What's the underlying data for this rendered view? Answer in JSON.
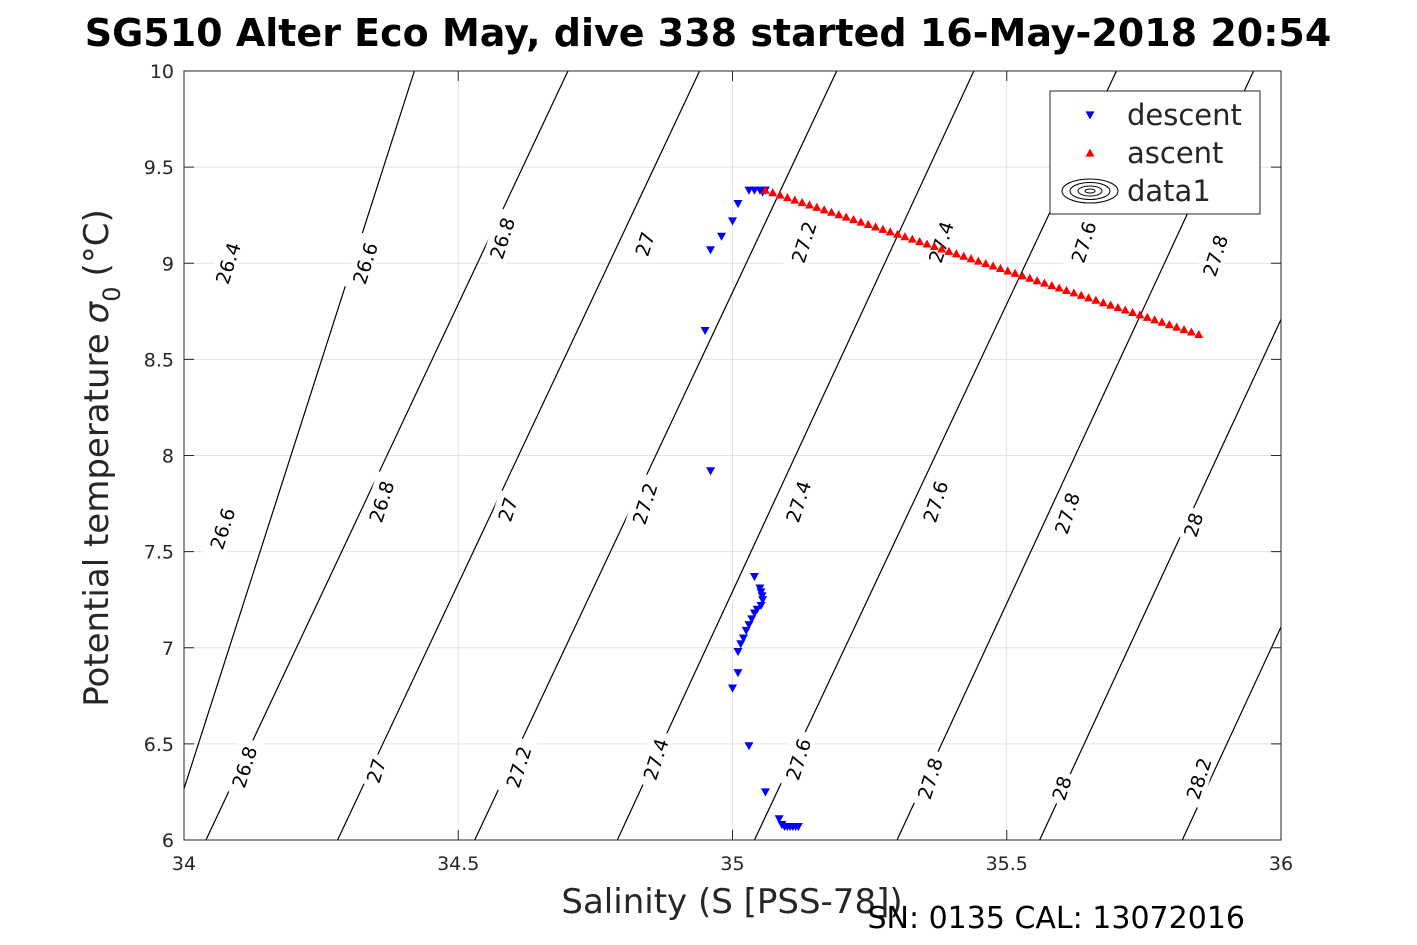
{
  "chart_data": {
    "type": "scatter",
    "title": "SG510 Alter Eco May, dive 338 started 16-May-2018 20:54",
    "xlabel": "Salinity (S [PSS-78])",
    "ylabel_main": "Potential temperature",
    "ylabel_sym": "σ",
    "ylabel_sub": "0",
    "ylabel_unit": "(°C)",
    "footer": "SN: 0135  CAL: 13072016",
    "xlim": [
      34,
      36
    ],
    "ylim": [
      6,
      10
    ],
    "xticks": [
      "34",
      "34.5",
      "35",
      "35.5",
      "36"
    ],
    "yticks": [
      "6",
      "6.5",
      "7",
      "7.5",
      "8",
      "8.5",
      "9",
      "9.5",
      "10"
    ],
    "grid": true,
    "legend_position": "top-right",
    "legend": [
      {
        "label": "descent",
        "marker": "triangle-down",
        "color": "#0000ff"
      },
      {
        "label": "ascent",
        "marker": "triangle-up",
        "color": "#ff0000"
      },
      {
        "label": "data1",
        "marker": "contour",
        "color": "#000000"
      }
    ],
    "contours": [
      {
        "level": "26.4",
        "x0": 33.97,
        "x1": 34.42
      },
      {
        "level": "26.6",
        "x0": 34.04,
        "x1": 34.7
      },
      {
        "level": "26.8",
        "x0": 34.28,
        "x1": 34.94
      },
      {
        "level": "27",
        "x0": 34.53,
        "x1": 35.19
      },
      {
        "level": "27.2",
        "x0": 34.79,
        "x1": 35.44
      },
      {
        "level": "27.4",
        "x0": 35.04,
        "x1": 35.7
      },
      {
        "level": "27.6",
        "x0": 35.3,
        "x1": 35.95
      },
      {
        "level": "27.8",
        "x0": 35.56,
        "x1": 36.21
      },
      {
        "level": "28",
        "x0": 35.82,
        "x1": 36.47
      },
      {
        "level": "28.2",
        "x0": 36.08,
        "x1": 36.73
      }
    ],
    "contour_labels": [
      {
        "text": "26.4",
        "x": 34.08,
        "y": 9.0
      },
      {
        "text": "26.6",
        "x": 34.33,
        "y": 9.0
      },
      {
        "text": "26.8",
        "x": 34.58,
        "y": 9.13
      },
      {
        "text": "27",
        "x": 34.84,
        "y": 9.1
      },
      {
        "text": "27.2",
        "x": 35.13,
        "y": 9.11
      },
      {
        "text": "27.4",
        "x": 35.38,
        "y": 9.11
      },
      {
        "text": "27.6",
        "x": 35.64,
        "y": 9.11
      },
      {
        "text": "27.8",
        "x": 35.88,
        "y": 9.04
      },
      {
        "text": "26.6",
        "x": 34.07,
        "y": 7.62
      },
      {
        "text": "26.8",
        "x": 34.36,
        "y": 7.76
      },
      {
        "text": "27",
        "x": 34.59,
        "y": 7.72
      },
      {
        "text": "27.2",
        "x": 34.84,
        "y": 7.75
      },
      {
        "text": "27.4",
        "x": 35.12,
        "y": 7.76
      },
      {
        "text": "27.6",
        "x": 35.37,
        "y": 7.76
      },
      {
        "text": "27.8",
        "x": 35.61,
        "y": 7.7
      },
      {
        "text": "28",
        "x": 35.84,
        "y": 7.64
      },
      {
        "text": "26.8",
        "x": 34.11,
        "y": 6.38
      },
      {
        "text": "27",
        "x": 34.35,
        "y": 6.36
      },
      {
        "text": "27.2",
        "x": 34.61,
        "y": 6.38
      },
      {
        "text": "27.4",
        "x": 34.86,
        "y": 6.42
      },
      {
        "text": "27.6",
        "x": 35.12,
        "y": 6.42
      },
      {
        "text": "27.8",
        "x": 35.36,
        "y": 6.32
      },
      {
        "text": "28",
        "x": 35.6,
        "y": 6.27
      },
      {
        "text": "28.2",
        "x": 35.85,
        "y": 6.32
      }
    ],
    "series": [
      {
        "name": "descent",
        "marker": "triangle-down",
        "color": "#0000ff",
        "points": [
          [
            35.03,
            9.38
          ],
          [
            35.04,
            9.38
          ],
          [
            35.05,
            9.38
          ],
          [
            35.06,
            9.38
          ],
          [
            35.055,
            9.37
          ],
          [
            35.01,
            9.31
          ],
          [
            35.0,
            9.22
          ],
          [
            34.98,
            9.14
          ],
          [
            34.96,
            9.07
          ],
          [
            34.95,
            8.65
          ],
          [
            34.96,
            7.92
          ],
          [
            35.04,
            7.37
          ],
          [
            35.05,
            7.31
          ],
          [
            35.052,
            7.29
          ],
          [
            35.054,
            7.27
          ],
          [
            35.055,
            7.25
          ],
          [
            35.052,
            7.22
          ],
          [
            35.045,
            7.2
          ],
          [
            35.04,
            7.18
          ],
          [
            35.035,
            7.15
          ],
          [
            35.03,
            7.12
          ],
          [
            35.025,
            7.09
          ],
          [
            35.02,
            7.05
          ],
          [
            35.015,
            7.02
          ],
          [
            35.01,
            6.98
          ],
          [
            35.01,
            6.87
          ],
          [
            35.0,
            6.79
          ],
          [
            35.03,
            6.49
          ],
          [
            35.06,
            6.25
          ],
          [
            35.085,
            6.11
          ],
          [
            35.09,
            6.08
          ],
          [
            35.095,
            6.07
          ],
          [
            35.1,
            6.07
          ],
          [
            35.105,
            6.07
          ],
          [
            35.11,
            6.07
          ],
          [
            35.115,
            6.07
          ],
          [
            35.12,
            6.07
          ]
        ]
      },
      {
        "name": "ascent",
        "marker": "triangle-up",
        "color": "#ff0000",
        "from": [
          35.06,
          9.38
        ],
        "to": [
          35.85,
          8.63
        ],
        "count": 60
      }
    ]
  }
}
